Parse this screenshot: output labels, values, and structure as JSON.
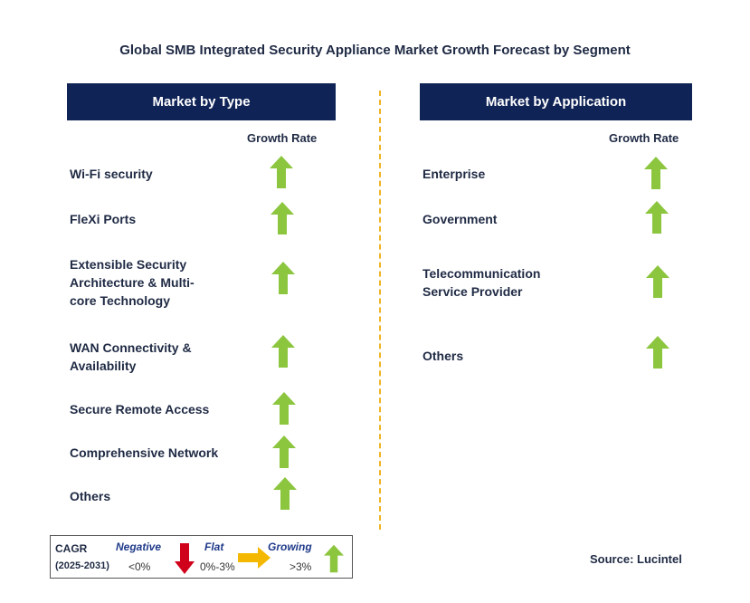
{
  "title": "Global SMB Integrated Security Appliance Market Growth Forecast by Segment",
  "left_panel": {
    "header": "Market by Type",
    "growth_rate_label": "Growth Rate",
    "items": [
      {
        "line1": "Wi-Fi security",
        "line2": "",
        "line3": "",
        "trend": "growing"
      },
      {
        "line1": "FleXi Ports",
        "line2": "",
        "line3": "",
        "trend": "growing"
      },
      {
        "line1": "Extensible Security",
        "line2": "Architecture & Multi-",
        "line3": "core Technology",
        "trend": "growing"
      },
      {
        "line1": "WAN Connectivity &",
        "line2": "Availability",
        "line3": "",
        "trend": "growing"
      },
      {
        "line1": "Secure Remote Access",
        "line2": "",
        "line3": "",
        "trend": "growing"
      },
      {
        "line1": "Comprehensive Network",
        "line2": "",
        "line3": "",
        "trend": "growing"
      },
      {
        "line1": "Others",
        "line2": "",
        "line3": "",
        "trend": "growing"
      }
    ]
  },
  "right_panel": {
    "header": "Market by Application",
    "growth_rate_label": "Growth Rate",
    "items": [
      {
        "line1": "Enterprise",
        "line2": "",
        "trend": "growing"
      },
      {
        "line1": "Government",
        "line2": "",
        "trend": "growing"
      },
      {
        "line1": "Telecommunication",
        "line2": "Service Provider",
        "trend": "growing"
      },
      {
        "line1": "Others",
        "line2": "",
        "trend": "growing"
      }
    ]
  },
  "legend": {
    "cagr": "CAGR",
    "period": "(2025-2031)",
    "negative_label": "Negative",
    "negative_range": "<0%",
    "flat_label": "Flat",
    "flat_range": "0%-3%",
    "growing_label": "Growing",
    "growing_range": ">3%"
  },
  "source": "Source: Lucintel",
  "colors": {
    "header_bg": "#0f2356",
    "text": "#1f2a44",
    "growing": "#8cc63f",
    "negative": "#d0021b",
    "flat": "#f5b800",
    "divider": "#f0b323"
  }
}
